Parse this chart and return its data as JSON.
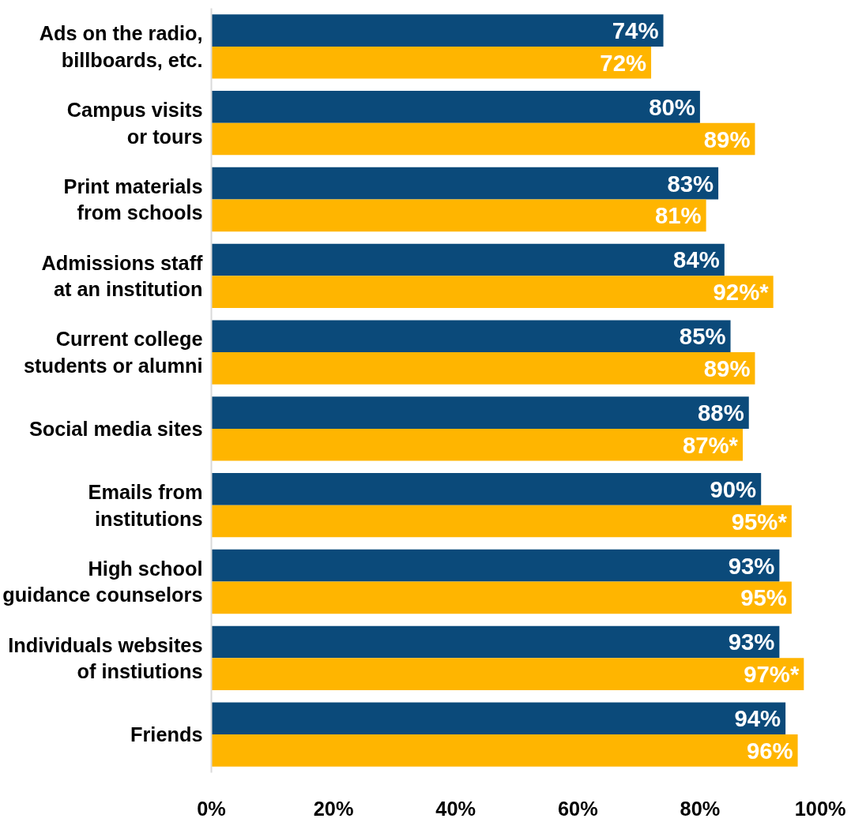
{
  "chart_data": {
    "type": "bar",
    "orientation": "horizontal",
    "categories": [
      "Ads on the radio,\nbillboards, etc.",
      "Campus visits\nor tours",
      "Print materials\nfrom schools",
      "Admissions staff\nat an institution",
      "Current college\nstudents or alumni",
      "Social media sites",
      "Emails from\ninstitutions",
      "High school\nguidance counselors",
      "Individuals websites\nof instiutions",
      "Friends"
    ],
    "series": [
      {
        "color": "#0b4a7a",
        "values": [
          74,
          80,
          83,
          84,
          85,
          88,
          90,
          93,
          93,
          94
        ],
        "value_labels": [
          "74%",
          "80%",
          "83%",
          "84%",
          "85%",
          "88%",
          "90%",
          "93%",
          "93%",
          "94%"
        ]
      },
      {
        "color": "#ffb500",
        "values": [
          72,
          89,
          81,
          92,
          89,
          87,
          95,
          95,
          97,
          96
        ],
        "value_labels": [
          "72%",
          "89%",
          "81%",
          "92%*",
          "89%",
          "87%*",
          "95%*",
          "95%",
          "97%*",
          "96%"
        ]
      }
    ],
    "xlim": [
      0,
      100
    ],
    "xticks": [
      {
        "value": 0,
        "label": "0%"
      },
      {
        "value": 20,
        "label": "20%"
      },
      {
        "value": 40,
        "label": "40%"
      },
      {
        "value": 60,
        "label": "60%"
      },
      {
        "value": 80,
        "label": "80%"
      },
      {
        "value": 100,
        "label": "100%"
      }
    ]
  }
}
